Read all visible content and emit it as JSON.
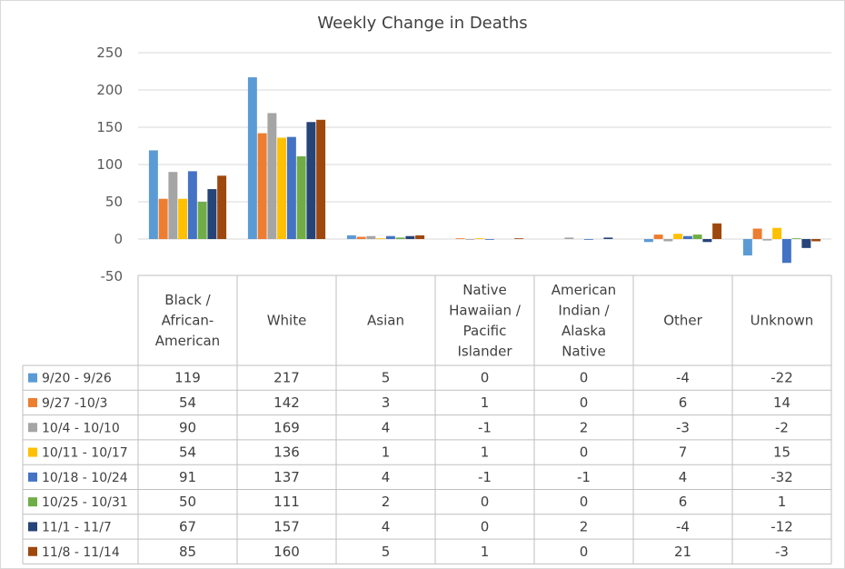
{
  "chart_data": {
    "type": "bar",
    "title": "Weekly Change in Deaths",
    "ylim": [
      -50,
      250
    ],
    "yticks": [
      -50,
      0,
      50,
      100,
      150,
      200,
      250
    ],
    "grid": true,
    "legend": "data-table",
    "categories": [
      [
        "Black /",
        "African-",
        "American"
      ],
      [
        "White"
      ],
      [
        "Asian"
      ],
      [
        "Native",
        "Hawaiian /",
        "Pacific",
        "Islander"
      ],
      [
        "American",
        "Indian /",
        "Alaska",
        "Native"
      ],
      [
        "Other"
      ],
      [
        "Unknown"
      ]
    ],
    "series": [
      {
        "name": "9/20 - 9/26",
        "color": "#5b9bd5",
        "values": [
          119,
          217,
          5,
          0,
          0,
          -4,
          -22
        ]
      },
      {
        "name": "9/27 -10/3",
        "color": "#ed7d31",
        "values": [
          54,
          142,
          3,
          1,
          0,
          6,
          14
        ]
      },
      {
        "name": "10/4 - 10/10",
        "color": "#a5a5a5",
        "values": [
          90,
          169,
          4,
          -1,
          2,
          -3,
          -2
        ]
      },
      {
        "name": "10/11 - 10/17",
        "color": "#ffc000",
        "values": [
          54,
          136,
          1,
          1,
          0,
          7,
          15
        ]
      },
      {
        "name": "10/18 - 10/24",
        "color": "#4472c4",
        "values": [
          91,
          137,
          4,
          -1,
          -1,
          4,
          -32
        ]
      },
      {
        "name": "10/25 - 10/31",
        "color": "#70ad47",
        "values": [
          50,
          111,
          2,
          0,
          0,
          6,
          1
        ]
      },
      {
        "name": "11/1 - 11/7",
        "color": "#264478",
        "values": [
          67,
          157,
          4,
          0,
          2,
          -4,
          -12
        ]
      },
      {
        "name": "11/8 - 11/14",
        "color": "#9e480e",
        "values": [
          85,
          160,
          5,
          1,
          0,
          21,
          -3
        ]
      }
    ]
  }
}
